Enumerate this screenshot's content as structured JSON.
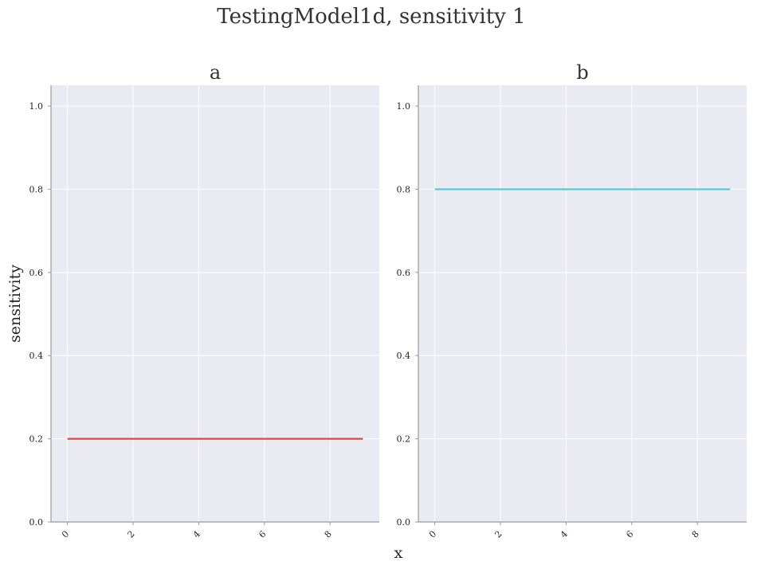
{
  "figure": {
    "suptitle": "TestingModel1d, sensitivity 1",
    "xlabel": "x",
    "ylabel": "sensitivity"
  },
  "chart_data": [
    {
      "type": "line",
      "title": "a",
      "xlabel": "x",
      "ylabel": "sensitivity",
      "xlim": [
        -0.5,
        9.5
      ],
      "ylim": [
        0.0,
        1.05
      ],
      "xticks": [
        0,
        2,
        4,
        6,
        8
      ],
      "xtick_labels": [
        "0",
        "2",
        "4",
        "6",
        "8"
      ],
      "yticks": [
        0.0,
        0.2,
        0.4,
        0.6,
        0.8,
        1.0
      ],
      "ytick_labels": [
        "0.0",
        "0.2",
        "0.4",
        "0.6",
        "0.8",
        "1.0"
      ],
      "grid": true,
      "series": [
        {
          "color": "#E24A33",
          "x": [
            0,
            1,
            2,
            3,
            4,
            5,
            6,
            7,
            8,
            9
          ],
          "y": [
            0.2,
            0.2,
            0.2,
            0.2,
            0.2,
            0.2,
            0.2,
            0.2,
            0.2,
            0.2
          ]
        }
      ]
    },
    {
      "type": "line",
      "title": "b",
      "xlabel": "x",
      "ylabel": "",
      "xlim": [
        -0.5,
        9.5
      ],
      "ylim": [
        0.0,
        1.05
      ],
      "xticks": [
        0,
        2,
        4,
        6,
        8
      ],
      "xtick_labels": [
        "0",
        "2",
        "4",
        "6",
        "8"
      ],
      "yticks": [
        0.0,
        0.2,
        0.4,
        0.6,
        0.8,
        1.0
      ],
      "ytick_labels": [
        "0.0",
        "0.2",
        "0.4",
        "0.6",
        "0.8",
        "1.0"
      ],
      "grid": true,
      "series": [
        {
          "color": "#5BC8D6",
          "x": [
            0,
            1,
            2,
            3,
            4,
            5,
            6,
            7,
            8,
            9
          ],
          "y": [
            0.8,
            0.8,
            0.8,
            0.8,
            0.8,
            0.8,
            0.8,
            0.8,
            0.8,
            0.8
          ]
        }
      ]
    }
  ],
  "style": {
    "plot_background": "#EAEAF2",
    "grid_color": "#FFFFFF",
    "spine_color": "#999999"
  }
}
